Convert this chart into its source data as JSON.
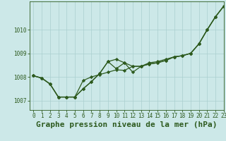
{
  "title": "Graphe pression niveau de la mer (hPa)",
  "background_color": "#cce8e8",
  "line_color": "#2d5a1e",
  "grid_color": "#aacfcf",
  "xlim": [
    -0.5,
    23
  ],
  "ylim": [
    1006.6,
    1011.2
  ],
  "yticks": [
    1007,
    1008,
    1009,
    1010
  ],
  "xticks": [
    0,
    1,
    2,
    3,
    4,
    5,
    6,
    7,
    8,
    9,
    10,
    11,
    12,
    13,
    14,
    15,
    16,
    17,
    18,
    19,
    20,
    21,
    22,
    23
  ],
  "series": [
    [
      1008.05,
      1007.95,
      1007.7,
      1007.15,
      1007.15,
      1007.15,
      1007.85,
      1008.0,
      1008.1,
      1008.2,
      1008.3,
      1008.28,
      1008.45,
      1008.45,
      1008.6,
      1008.65,
      1008.75,
      1008.85,
      1008.9,
      1009.0,
      1009.4,
      1010.0,
      1010.55,
      1011.0
    ],
    [
      1008.05,
      1007.95,
      1007.7,
      1007.15,
      1007.15,
      1007.15,
      1007.5,
      1007.8,
      1008.15,
      1008.65,
      1008.75,
      1008.6,
      1008.45,
      1008.45,
      1008.55,
      1008.6,
      1008.7,
      1008.85,
      1008.9,
      1009.0,
      1009.4,
      1010.0,
      1010.55,
      1011.0
    ],
    [
      1008.05,
      1007.95,
      1007.7,
      1007.15,
      1007.15,
      1007.15,
      1007.5,
      1007.8,
      1008.15,
      1008.65,
      1008.35,
      1008.6,
      1008.2,
      1008.45,
      1008.55,
      1008.6,
      1008.7,
      1008.85,
      1008.9,
      1009.0,
      1009.4,
      1010.0,
      1010.55,
      1011.0
    ]
  ],
  "marker": "D",
  "markersize": 2.2,
  "linewidth": 0.9,
  "title_fontsize": 8,
  "tick_fontsize": 5.5
}
